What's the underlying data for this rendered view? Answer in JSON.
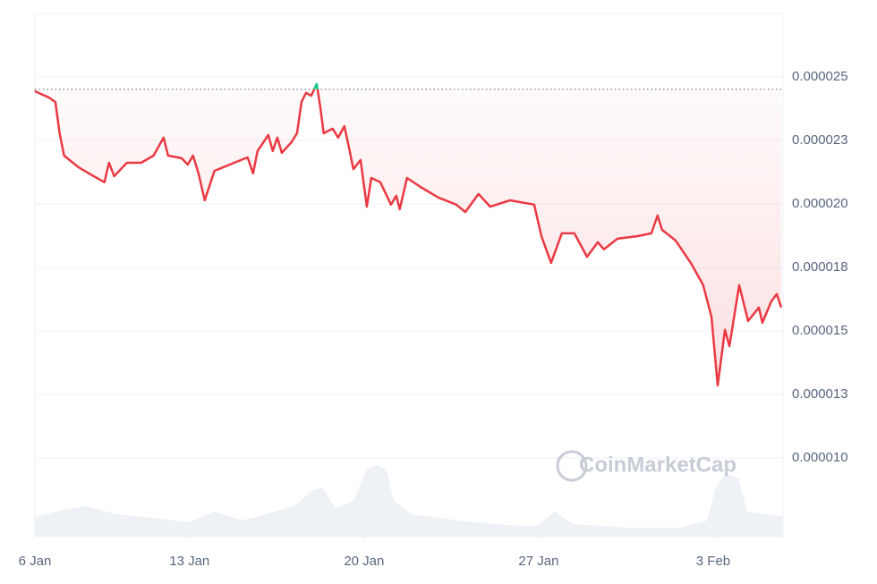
{
  "chart_data": {
    "type": "line",
    "watermark": "CoinMarketCap",
    "reference": 2.451e-05,
    "xlim": [
      0.8,
      30.8
    ],
    "xticks": [
      {
        "value": 0,
        "label": "6 Jan"
      },
      {
        "value": 7,
        "label": "13 Jan"
      },
      {
        "value": 14,
        "label": "20 Jan"
      },
      {
        "value": 21,
        "label": "27 Jan"
      },
      {
        "value": 28,
        "label": "3 Feb"
      }
    ],
    "ylim": [
      6.9e-06,
      2.75e-05
    ],
    "yticks": [
      2.5e-05,
      {
        "value": 2.25e-05,
        "label": "0.000023"
      },
      {
        "value": 2e-05,
        "label": "0.000020"
      },
      {
        "value": 1.75e-05,
        "label": "0.000018"
      },
      1.5e-05,
      {
        "value": 1.25e-05,
        "label": "0.000013"
      },
      {
        "value": 1e-05,
        "label": "0.000010"
      }
    ],
    "grid": true,
    "up_color": "#16c784",
    "down_color": "#ea3943",
    "x": [
      0.79,
      1.36,
      1.62,
      1.79,
      1.97,
      2.55,
      3.09,
      3.59,
      3.77,
      3.98,
      4.49,
      5.06,
      5.56,
      5.96,
      6.14,
      6.68,
      6.93,
      7.14,
      7.36,
      7.61,
      8.0,
      8.79,
      9.33,
      9.55,
      9.73,
      10.16,
      10.34,
      10.52,
      10.7,
      11.09,
      11.31,
      11.49,
      11.67,
      11.88,
      12.1,
      12.24,
      12.38,
      12.74,
      12.96,
      13.21,
      13.39,
      13.57,
      13.86,
      14.11,
      14.29,
      14.65,
      15.08,
      15.29,
      15.43,
      15.72,
      16.26,
      16.98,
      17.7,
      18.06,
      18.59,
      19.06,
      19.85,
      20.82,
      21.11,
      21.5,
      21.93,
      22.43,
      22.94,
      23.37,
      23.62,
      24.16,
      24.95,
      25.52,
      25.77,
      25.95,
      26.49,
      27.1,
      27.6,
      27.93,
      28.18,
      28.47,
      28.65,
      29.04,
      29.4,
      29.83,
      29.97,
      30.33,
      30.55,
      30.73
    ],
    "values": [
      2.444e-05,
      2.419e-05,
      2.401e-05,
      2.278e-05,
      2.19e-05,
      2.144e-05,
      2.113e-05,
      2.085e-05,
      2.162e-05,
      2.109e-05,
      2.162e-05,
      2.162e-05,
      2.19e-05,
      2.261e-05,
      2.19e-05,
      2.18e-05,
      2.155e-05,
      2.19e-05,
      2.12e-05,
      2.014e-05,
      2.13e-05,
      2.162e-05,
      2.183e-05,
      2.12e-05,
      2.208e-05,
      2.271e-05,
      2.208e-05,
      2.261e-05,
      2.201e-05,
      2.243e-05,
      2.278e-05,
      2.401e-05,
      2.437e-05,
      2.426e-05,
      2.472e-05,
      2.384e-05,
      2.278e-05,
      2.296e-05,
      2.261e-05,
      2.306e-05,
      2.225e-05,
      2.137e-05,
      2.173e-05,
      1.989e-05,
      2.102e-05,
      2.085e-05,
      1.997e-05,
      2.032e-05,
      1.979e-05,
      2.102e-05,
      2.067e-05,
      2.025e-05,
      1.997e-05,
      1.968e-05,
      2.039e-05,
      1.989e-05,
      2.014e-05,
      1.997e-05,
      1.873e-05,
      1.768e-05,
      1.884e-05,
      1.884e-05,
      1.792e-05,
      1.849e-05,
      1.821e-05,
      1.863e-05,
      1.873e-05,
      1.884e-05,
      1.954e-05,
      1.898e-05,
      1.856e-05,
      1.768e-05,
      1.68e-05,
      1.556e-05,
      1.285e-05,
      1.504e-05,
      1.44e-05,
      1.68e-05,
      1.539e-05,
      1.592e-05,
      1.532e-05,
      1.616e-05,
      1.645e-05,
      1.592e-05
    ]
  }
}
